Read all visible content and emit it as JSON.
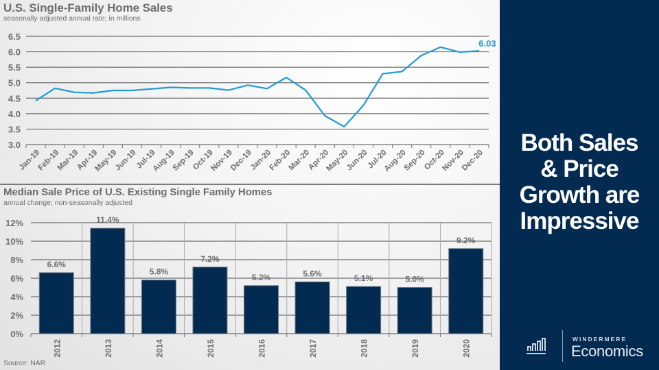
{
  "panel": {
    "headline_lines": [
      "Both Sales",
      "& Price",
      "Growth are",
      "Impressive"
    ],
    "logo_top": "WINDERMERE",
    "logo_bottom": "Economics",
    "logo_icon": "bar-chart-logo-icon"
  },
  "source": "Source: NAR",
  "colors": {
    "line": "#1f9ad6",
    "bar": "#032b52",
    "panel": "#032b52",
    "text": "#6d6d6d",
    "grid": "#6f6f6f"
  },
  "chart_data": [
    {
      "type": "line",
      "title": "U.S. Single-Family Home Sales",
      "subtitle": "seasonally adjusted annual rate; in millions",
      "xlabel": "",
      "ylabel": "",
      "ylim": [
        3.0,
        6.5
      ],
      "yticks": [
        "3.0",
        "3.5",
        "4.0",
        "4.5",
        "5.0",
        "5.5",
        "6.0",
        "6.5"
      ],
      "grid": true,
      "categories": [
        "Jan-19",
        "Feb-19",
        "Mar-19",
        "Apr-19",
        "May-19",
        "Jun-19",
        "Jul-19",
        "Aug-19",
        "Sep-19",
        "Oct-19",
        "Nov-19",
        "Dec-19",
        "Jan-20",
        "Feb-20",
        "Mar-20",
        "Apr-20",
        "May-20",
        "Jun-20",
        "Jul-20",
        "Aug-20",
        "Sep-20",
        "Oct-20",
        "Nov-20",
        "Dec-20"
      ],
      "values": [
        4.42,
        4.82,
        4.69,
        4.67,
        4.75,
        4.75,
        4.8,
        4.85,
        4.83,
        4.83,
        4.76,
        4.92,
        4.81,
        5.17,
        4.76,
        3.93,
        3.58,
        4.27,
        5.29,
        5.36,
        5.88,
        6.15,
        5.99,
        6.03
      ],
      "annotation": "6.03"
    },
    {
      "type": "bar",
      "title": "Median Sale Price of U.S. Existing Single Family Homes",
      "subtitle": "annual change; non-seasonally adjusted",
      "xlabel": "",
      "ylabel": "",
      "ylim": [
        0,
        12
      ],
      "yticks": [
        "0%",
        "2%",
        "4%",
        "6%",
        "8%",
        "10%",
        "12%"
      ],
      "grid": true,
      "categories": [
        "2012",
        "2013",
        "2014",
        "2015",
        "2016",
        "2017",
        "2018",
        "2019",
        "2020"
      ],
      "values": [
        6.6,
        11.4,
        5.8,
        7.2,
        5.2,
        5.6,
        5.1,
        5.0,
        9.2
      ],
      "labels": [
        "6.6%",
        "11.4%",
        "5.8%",
        "7.2%",
        "5.2%",
        "5.6%",
        "5.1%",
        "5.0%",
        "9.2%"
      ]
    }
  ]
}
